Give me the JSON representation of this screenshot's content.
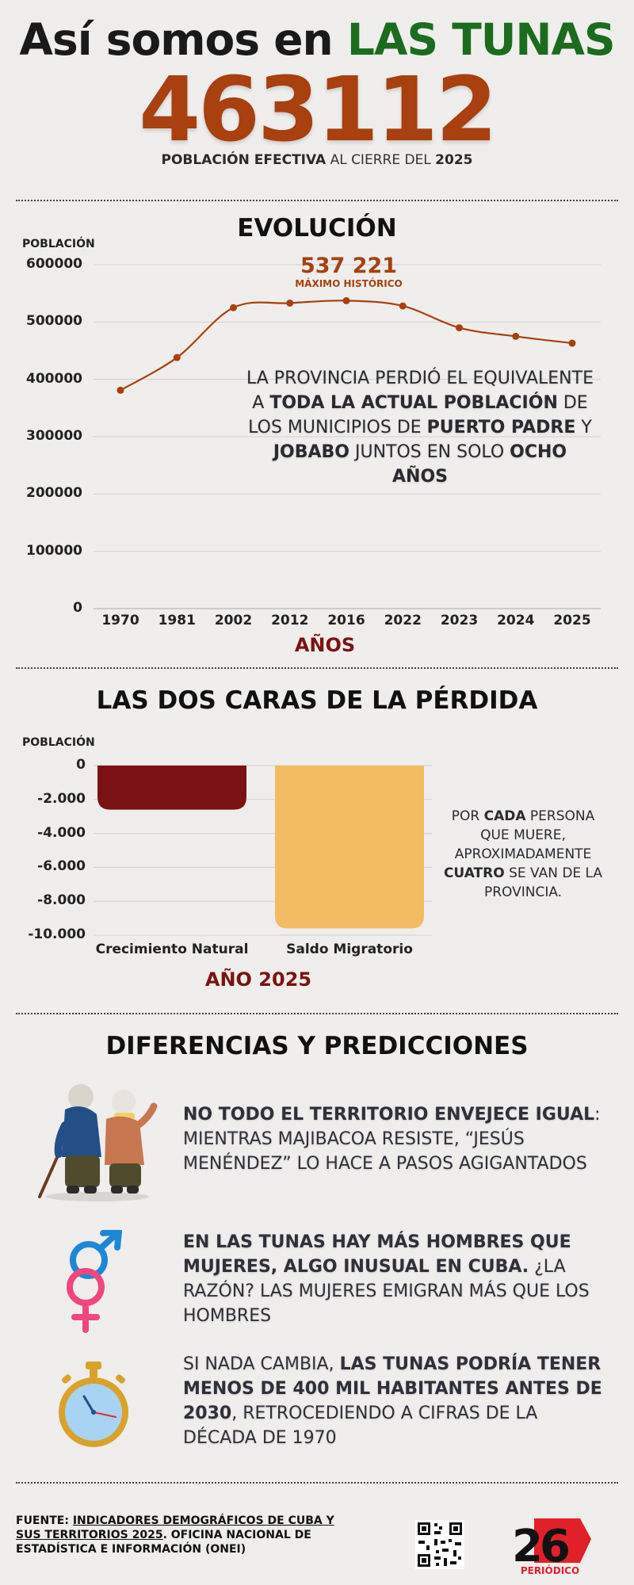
{
  "header": {
    "title_prefix": "Así somos en",
    "title_highlight": "LAS TUNAS",
    "big_number": "463112",
    "subtitle_bold": "POBLACIÓN EFECTIVA",
    "subtitle_mid": "AL CIERRE DEL",
    "subtitle_year": "2025"
  },
  "section1": {
    "title": "EVOLUCIÓN",
    "peak_value": "537 221",
    "peak_label": "MÁXIMO HISTÓRICO",
    "note": {
      "p1": "LA PROVINCIA PERDIÓ EL EQUIVALENTE A ",
      "b1": "TODA LA ACTUAL POBLACIÓN",
      "p2": " DE LOS MUNICIPIOS DE ",
      "b2": "PUERTO PADRE",
      "p3": " Y ",
      "b3": "JOBABO",
      "p4": " JUNTOS EN SOLO ",
      "b4": "OCHO AÑOS"
    }
  },
  "section2": {
    "title": "LAS DOS CARAS DE LA PÉRDIDA",
    "note": {
      "p1": "POR ",
      "b1": "CADA",
      "p2": " PERSONA QUE MUERE, APROXIMADAMENTE ",
      "b2": "CUATRO",
      "p3": " SE VAN DE LA PROVINCIA."
    }
  },
  "section3": {
    "title": "DIFERENCIAS Y PREDICCIONES",
    "item1": {
      "b": "NO TODO EL TERRITORIO ENVEJECE IGUAL",
      "p": ": MIENTRAS MAJIBACOA RESISTE, “JESÚS MENÉNDEZ” LO HACE A PASOS AGIGANTADOS",
      "icon": "elderly-couple-icon"
    },
    "item2": {
      "b": "EN LAS TUNAS HAY MÁS HOMBRES QUE MUJERES, ALGO INUSUAL EN CUBA.",
      "p": " ¿LA RAZÓN? LAS MUJERES EMIGRAN MÁS QUE LOS HOMBRES",
      "icon": "gender-symbols-icon"
    },
    "item3": {
      "p1": "SI NADA CAMBIA, ",
      "b": "LAS TUNAS  PODRÍA TENER MENOS DE 400 MIL HABITANTES ANTES DE 2030",
      "p2": ", RETROCEDIENDO A CIFRAS DE LA DÉCADA DE 1970",
      "icon": "stopwatch-icon"
    }
  },
  "footer": {
    "label": "FUENTE: ",
    "source_link": "INDICADORES DEMOGRÁFICOS DE CUBA Y SUS TERRITORIOS 2025",
    "source_rest": ". OFICINA NACIONAL DE ESTADÍSTICA E INFORMACIÓN (ONEI)",
    "logo_number": "26",
    "logo_text": "PERIÓDICO"
  },
  "colors": {
    "line": "#a8400f",
    "green": "#1c6b1f",
    "bar_natural": "#7a1214",
    "bar_migratory": "#f2bc63",
    "axis_title": "#7a1412",
    "logo_red": "#e2202a"
  },
  "chart_data": [
    {
      "type": "line",
      "x": [
        "1970",
        "1981",
        "2002",
        "2012",
        "2016",
        "2022",
        "2023",
        "2024",
        "2025"
      ],
      "series": [
        {
          "values": [
            381000,
            438000,
            525000,
            533000,
            537221,
            528000,
            490000,
            475000,
            463112
          ]
        }
      ],
      "ylabel": "POBLACIÓN",
      "xlabel": "AÑOS",
      "ylim": [
        0,
        600000
      ],
      "yticks": [
        "600000",
        "500000",
        "400000",
        "300000",
        "200000",
        "100000",
        "0"
      ],
      "grid": true
    },
    {
      "type": "bar",
      "categories": [
        "Crecimiento Natural",
        "Saldo Migratorio"
      ],
      "values": [
        -2600,
        -9600
      ],
      "ylabel": "POBLACIÓN",
      "xlabel": "AÑO 2025",
      "ylim": [
        -10000,
        0
      ],
      "yticks": [
        "0",
        "-2.000",
        "-4.000",
        "-6.000",
        "-8.000",
        "-10.000"
      ],
      "grid": true
    }
  ]
}
